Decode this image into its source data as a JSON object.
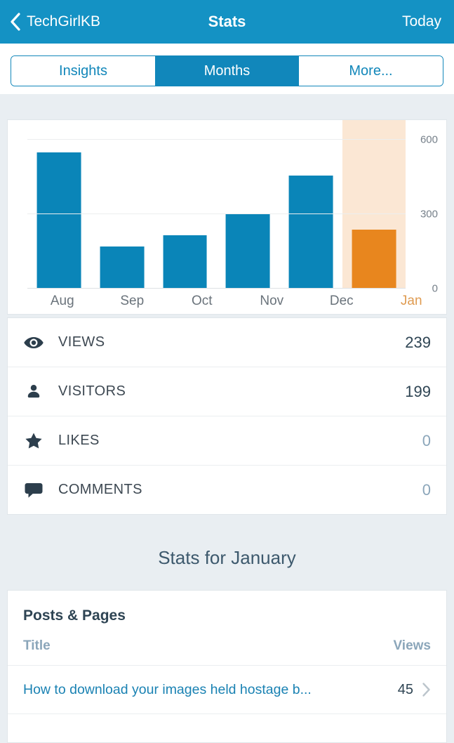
{
  "colors": {
    "header_bg": "#1492c4",
    "accent_blue": "#1287ba",
    "bar_blue": "#0a85b8",
    "bar_orange": "#e8861e",
    "highlight_column": "#fbe7d4",
    "jan_label": "#df9b51",
    "link_blue": "#1a82b3",
    "dark_text": "#2e4453",
    "muted_text": "#8ba6ba",
    "page_bg": "#e9eef2"
  },
  "header": {
    "back_label": "TechGirlKB",
    "title": "Stats",
    "action_label": "Today"
  },
  "tabs": [
    {
      "label": "Insights",
      "selected": false
    },
    {
      "label": "Months",
      "selected": true
    },
    {
      "label": "More...",
      "selected": false
    }
  ],
  "chart_data": {
    "type": "bar",
    "categories": [
      "Aug",
      "Sep",
      "Oct",
      "Nov",
      "Dec",
      "Jan"
    ],
    "values": [
      550,
      170,
      215,
      300,
      455,
      239
    ],
    "highlighted_category": "Jan",
    "yticks": [
      0,
      300,
      600
    ],
    "ylim": [
      0,
      680
    ],
    "grid": true,
    "legend": false,
    "title": "",
    "xlabel": "",
    "ylabel": ""
  },
  "summary_rows": [
    {
      "icon": "eye-icon",
      "label": "VIEWS",
      "value": "239",
      "muted": false
    },
    {
      "icon": "person-icon",
      "label": "VISITORS",
      "value": "199",
      "muted": false
    },
    {
      "icon": "star-icon",
      "label": "LIKES",
      "value": "0",
      "muted": true
    },
    {
      "icon": "comment-icon",
      "label": "COMMENTS",
      "value": "0",
      "muted": true
    }
  ],
  "section_title": "Stats for January",
  "posts_card": {
    "title": "Posts & Pages",
    "columns": {
      "title": "Title",
      "views": "Views"
    },
    "rows": [
      {
        "title": "How to download your images held hostage b...",
        "views": "45"
      }
    ]
  }
}
